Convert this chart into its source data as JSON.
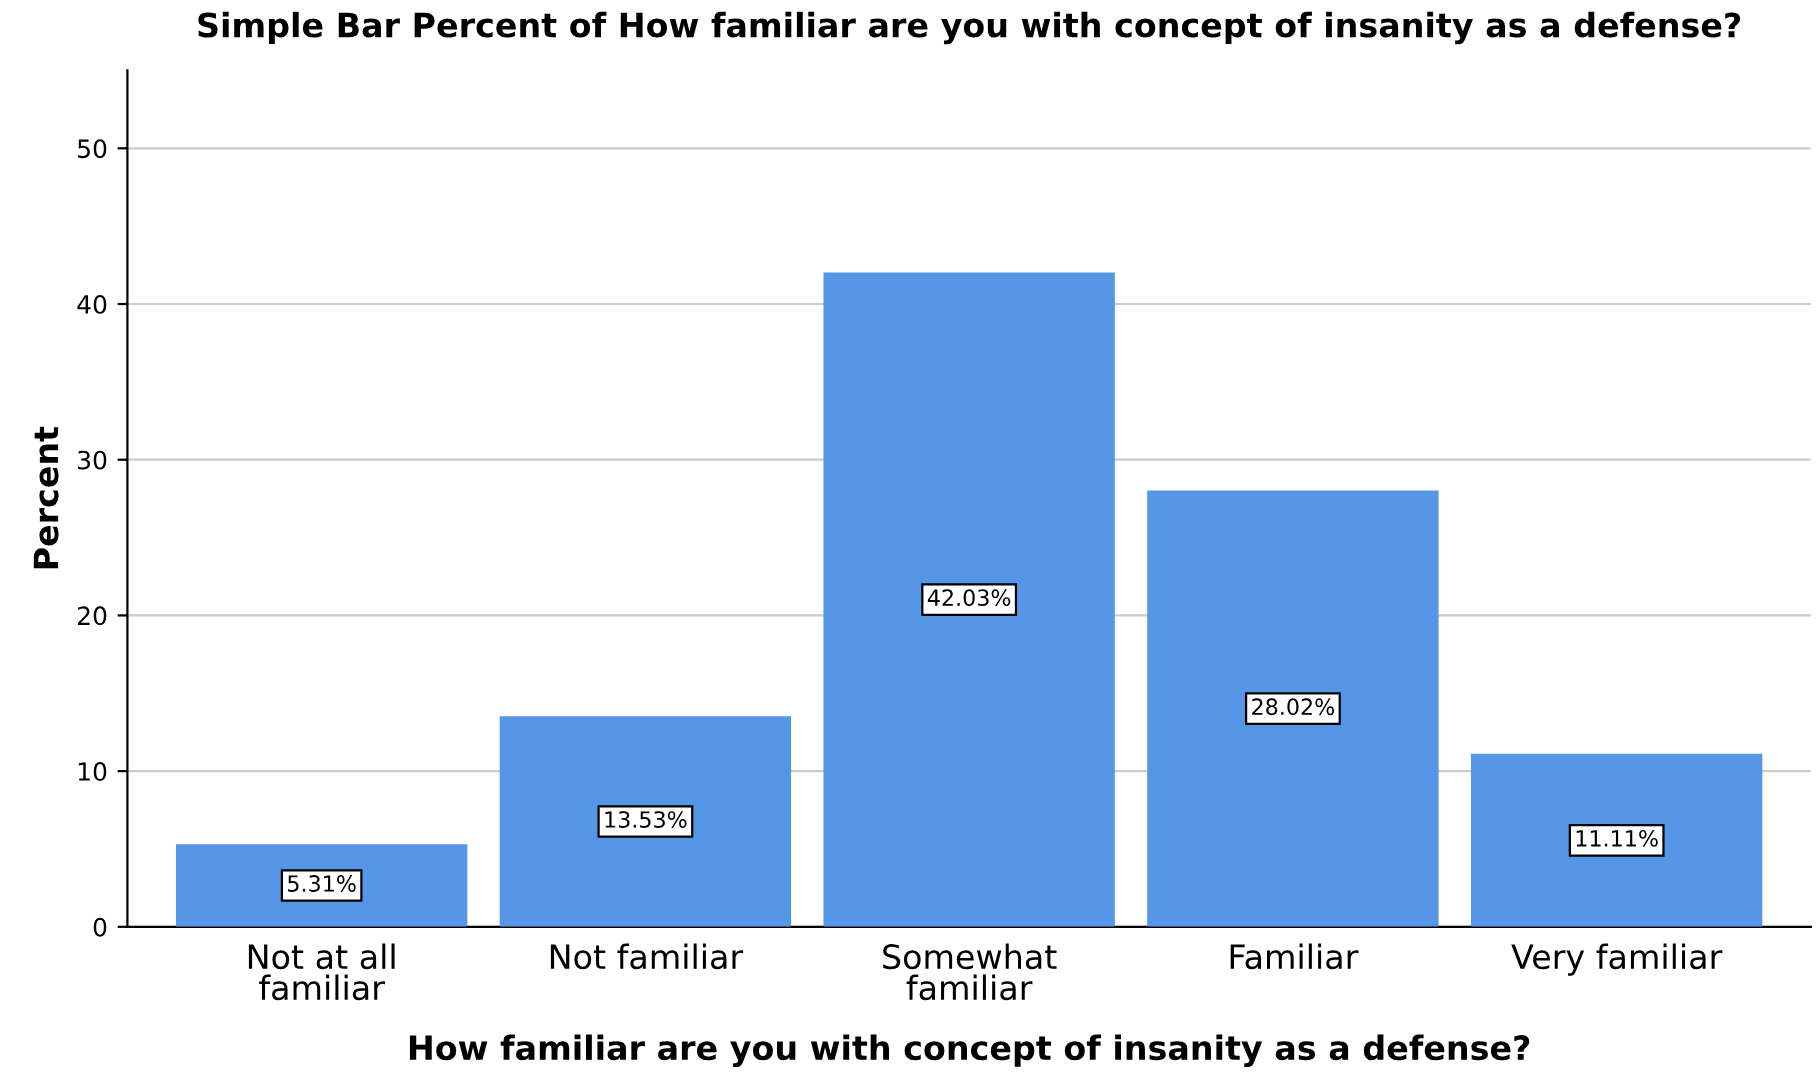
{
  "chart_data": {
    "type": "bar",
    "title": "Simple Bar Percent of How familiar are you with concept of insanity as a defense?",
    "xlabel": "How familiar are you with concept of insanity as a defense?",
    "ylabel": "Percent",
    "categories": [
      "Not at all\nfamiliar",
      "Not familiar",
      "Somewhat\nfamiliar",
      "Familiar",
      "Very familiar"
    ],
    "values": [
      5.31,
      13.53,
      42.03,
      28.02,
      11.11
    ],
    "value_labels": [
      "5.31%",
      "13.53%",
      "42.03%",
      "28.02%",
      "11.11%"
    ],
    "color": "#5596e6",
    "ylim": [
      0,
      55
    ],
    "yticks": [
      0,
      10,
      20,
      30,
      40,
      50
    ],
    "grid": "y"
  }
}
